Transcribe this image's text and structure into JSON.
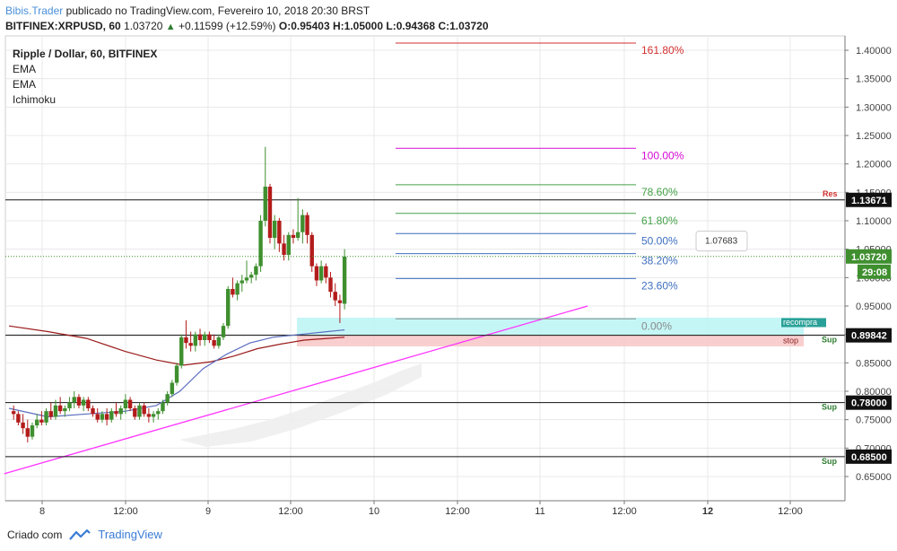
{
  "header": {
    "author": "Bibis.Trader",
    "published": " publicado no TradingView.com, Fevereiro 10, 2018 20:30 BRST",
    "ticker": "BITFINEX:XRPUSD, 60",
    "last": "1.03720",
    "change": "+0.11599 (+12.59%)",
    "o_label": "O:",
    "o_val": "0.95403",
    "h_label": "H:",
    "h_val": "1.05000",
    "l_label": "L:",
    "l_val": "0.94368",
    "c_label": "C:",
    "c_val": "1.03720"
  },
  "legend": {
    "symbol": "Ripple / Dollar, 60, BITFINEX",
    "indicators": [
      "EMA",
      "EMA",
      "Ichimoku"
    ]
  },
  "footer": {
    "created": "Criado com",
    "brand": "TradingView"
  },
  "colors": {
    "up": "#3f8f2f",
    "down": "#b31b1b",
    "grid": "#e8e8e8",
    "fib100": "#d60bd6",
    "fib1618": "#d32f2f",
    "fib786": "#43a047",
    "fib618": "#43a047",
    "fib50": "#3f6fbf",
    "fib382": "#3f6fbf",
    "fib236": "#3f6fbf",
    "fib0": "#8a8a8a",
    "trendline": "#ff33ff",
    "ema_fast": "#5b6dbf",
    "ema_slow": "#9b1b1b"
  },
  "chart_data": {
    "type": "candlestick",
    "title": "Ripple / Dollar, 60, BITFINEX",
    "y_axis": {
      "ticks": [
        "1.40000",
        "1.35000",
        "1.30000",
        "1.25000",
        "1.20000",
        "1.15000",
        "1.10000",
        "1.05000",
        "1.00000",
        "0.95000",
        "0.90000",
        "0.85000",
        "0.80000",
        "0.75000",
        "0.70000",
        "0.65000"
      ],
      "range": [
        0.61,
        1.44
      ]
    },
    "x_axis": {
      "ticks": [
        "8",
        "12:00",
        "9",
        "12:00",
        "10",
        "12:00",
        "11",
        "12:00",
        "12",
        "12:00"
      ],
      "bold_ticks": [
        "12"
      ]
    },
    "price_labels": [
      {
        "value": 1.13671,
        "text": "1.13671",
        "style": "black"
      },
      {
        "value": 1.0372,
        "text": "1.03720",
        "style": "green"
      },
      {
        "value": 0.89842,
        "text": "0.89842",
        "style": "black"
      },
      {
        "value": 0.78,
        "text": "0.78000",
        "style": "black"
      },
      {
        "value": 0.685,
        "text": "0.68500",
        "style": "black"
      }
    ],
    "countdown": "29:08",
    "tooltip": "1.07683",
    "horizontal_levels": [
      {
        "value": 1.13671,
        "label": "Res",
        "label_color": "#d32f2f"
      },
      {
        "value": 0.89842,
        "label": "Sup",
        "label_color": "#2e7d32"
      },
      {
        "value": 0.78,
        "label": "Sup",
        "label_color": "#2e7d32"
      },
      {
        "value": 0.685,
        "label": "Sup",
        "label_color": "#2e7d32"
      }
    ],
    "fibonacci": [
      {
        "level": "161.80%",
        "price": 1.4126
      },
      {
        "level": "100.00%",
        "price": 1.2275
      },
      {
        "level": "78.60%",
        "price": 1.1633
      },
      {
        "level": "61.80%",
        "price": 1.113
      },
      {
        "level": "50.00%",
        "price": 1.0775
      },
      {
        "level": "38.20%",
        "price": 1.0421
      },
      {
        "level": "23.60%",
        "price": 0.9983
      },
      {
        "level": "0.00%",
        "price": 0.9275
      }
    ],
    "zones": [
      {
        "label": "recompra",
        "top": 0.9295,
        "bottom": 0.899
      },
      {
        "label": "stop",
        "top": 0.899,
        "bottom": 0.879
      }
    ],
    "candles": [
      [
        1.2,
        0.765,
        0.775,
        0.75,
        0.76
      ],
      [
        2.4,
        0.76,
        0.765,
        0.74,
        0.745
      ],
      [
        3.6,
        0.745,
        0.76,
        0.725,
        0.735
      ],
      [
        4.8,
        0.735,
        0.75,
        0.71,
        0.72
      ],
      [
        6.0,
        0.72,
        0.745,
        0.715,
        0.74
      ],
      [
        7.2,
        0.74,
        0.76,
        0.735,
        0.75
      ],
      [
        8.4,
        0.75,
        0.765,
        0.74,
        0.745
      ],
      [
        9.6,
        0.745,
        0.77,
        0.74,
        0.765
      ],
      [
        10.8,
        0.765,
        0.78,
        0.75,
        0.755
      ],
      [
        12.0,
        0.755,
        0.785,
        0.75,
        0.775
      ],
      [
        13.2,
        0.775,
        0.79,
        0.76,
        0.765
      ],
      [
        14.4,
        0.765,
        0.775,
        0.755,
        0.77
      ],
      [
        15.6,
        0.77,
        0.79,
        0.765,
        0.78
      ],
      [
        16.8,
        0.78,
        0.8,
        0.77,
        0.79
      ],
      [
        18.0,
        0.79,
        0.795,
        0.77,
        0.775
      ],
      [
        19.2,
        0.775,
        0.79,
        0.765,
        0.785
      ],
      [
        20.4,
        0.785,
        0.79,
        0.765,
        0.77
      ],
      [
        21.6,
        0.77,
        0.775,
        0.755,
        0.76
      ],
      [
        22.8,
        0.76,
        0.77,
        0.745,
        0.75
      ],
      [
        24.0,
        0.75,
        0.765,
        0.745,
        0.76
      ],
      [
        25.2,
        0.76,
        0.77,
        0.74,
        0.75
      ],
      [
        26.4,
        0.75,
        0.77,
        0.745,
        0.765
      ],
      [
        27.6,
        0.765,
        0.78,
        0.755,
        0.76
      ],
      [
        28.8,
        0.76,
        0.775,
        0.75,
        0.77
      ],
      [
        30.0,
        0.77,
        0.795,
        0.76,
        0.785
      ],
      [
        31.2,
        0.785,
        0.79,
        0.765,
        0.77
      ],
      [
        32.4,
        0.77,
        0.775,
        0.75,
        0.755
      ],
      [
        33.6,
        0.755,
        0.78,
        0.75,
        0.775
      ],
      [
        34.8,
        0.775,
        0.78,
        0.755,
        0.76
      ],
      [
        36.0,
        0.76,
        0.77,
        0.745,
        0.755
      ],
      [
        37.2,
        0.755,
        0.765,
        0.745,
        0.76
      ],
      [
        38.4,
        0.76,
        0.77,
        0.75,
        0.765
      ],
      [
        39.6,
        0.765,
        0.785,
        0.76,
        0.78
      ],
      [
        40.8,
        0.78,
        0.8,
        0.775,
        0.795
      ],
      [
        42.0,
        0.795,
        0.82,
        0.79,
        0.815
      ],
      [
        43.2,
        0.815,
        0.85,
        0.81,
        0.845
      ],
      [
        44.4,
        0.845,
        0.9,
        0.84,
        0.895
      ],
      [
        45.6,
        0.895,
        0.925,
        0.875,
        0.885
      ],
      [
        46.8,
        0.885,
        0.905,
        0.87,
        0.88
      ],
      [
        48.0,
        0.88,
        0.905,
        0.87,
        0.9
      ],
      [
        49.2,
        0.9,
        0.91,
        0.88,
        0.89
      ],
      [
        50.4,
        0.89,
        0.905,
        0.88,
        0.9
      ],
      [
        51.6,
        0.9,
        0.905,
        0.885,
        0.89
      ],
      [
        52.8,
        0.89,
        0.9,
        0.875,
        0.88
      ],
      [
        54.0,
        0.88,
        0.9,
        0.875,
        0.895
      ],
      [
        55.2,
        0.895,
        0.92,
        0.89,
        0.915
      ],
      [
        56.4,
        0.915,
        0.985,
        0.91,
        0.98
      ],
      [
        57.6,
        0.98,
        1.0,
        0.965,
        0.97
      ],
      [
        58.8,
        0.97,
        0.995,
        0.96,
        0.99
      ],
      [
        60.0,
        0.99,
        1.005,
        0.975,
        0.995
      ],
      [
        61.2,
        0.995,
        1.03,
        0.99,
        1.0
      ],
      [
        62.4,
        1.0,
        1.01,
        0.99,
        1.005
      ],
      [
        63.6,
        1.005,
        1.025,
        0.995,
        1.02
      ],
      [
        64.8,
        1.02,
        1.11,
        1.01,
        1.1
      ],
      [
        66.0,
        1.1,
        1.23,
        1.09,
        1.16
      ],
      [
        67.2,
        1.16,
        1.165,
        1.06,
        1.07
      ],
      [
        68.4,
        1.07,
        1.11,
        1.05,
        1.1
      ],
      [
        69.6,
        1.1,
        1.105,
        1.045,
        1.06
      ],
      [
        70.8,
        1.06,
        1.075,
        1.03,
        1.04
      ],
      [
        72.0,
        1.04,
        1.08,
        1.03,
        1.075
      ],
      [
        73.2,
        1.075,
        1.085,
        1.06,
        1.07
      ],
      [
        74.4,
        1.07,
        1.14,
        1.065,
        1.08
      ],
      [
        75.6,
        1.08,
        1.12,
        1.06,
        1.11
      ],
      [
        76.8,
        1.11,
        1.115,
        1.06,
        1.075
      ],
      [
        78.0,
        1.075,
        1.08,
        1.01,
        1.02
      ],
      [
        79.2,
        1.02,
        1.025,
        0.985,
        0.995
      ],
      [
        80.4,
        0.995,
        1.03,
        0.99,
        1.02
      ],
      [
        81.6,
        1.02,
        1.025,
        0.99,
        1.0
      ],
      [
        82.8,
        1.0,
        1.01,
        0.965,
        0.975
      ],
      [
        84.0,
        0.975,
        0.99,
        0.95,
        0.96
      ],
      [
        85.2,
        0.96,
        0.97,
        0.92,
        0.955
      ],
      [
        86.4,
        0.954,
        1.05,
        0.944,
        1.037
      ]
    ],
    "ema_fast": [
      [
        0,
        0.77
      ],
      [
        10,
        0.755
      ],
      [
        20,
        0.76
      ],
      [
        30,
        0.765
      ],
      [
        38,
        0.775
      ],
      [
        44,
        0.8
      ],
      [
        50,
        0.84
      ],
      [
        56,
        0.865
      ],
      [
        62,
        0.885
      ],
      [
        68,
        0.895
      ],
      [
        75,
        0.9
      ],
      [
        82,
        0.905
      ],
      [
        86.4,
        0.908
      ]
    ],
    "ema_slow": [
      [
        0,
        0.915
      ],
      [
        10,
        0.905
      ],
      [
        20,
        0.893
      ],
      [
        30,
        0.87
      ],
      [
        38,
        0.855
      ],
      [
        45,
        0.846
      ],
      [
        52,
        0.852
      ],
      [
        58,
        0.862
      ],
      [
        64,
        0.875
      ],
      [
        70,
        0.883
      ],
      [
        76,
        0.89
      ],
      [
        82,
        0.893
      ],
      [
        86.4,
        0.895
      ]
    ],
    "trendline": [
      [
        -1.2,
        0.655
      ],
      [
        149,
        0.95
      ]
    ]
  }
}
